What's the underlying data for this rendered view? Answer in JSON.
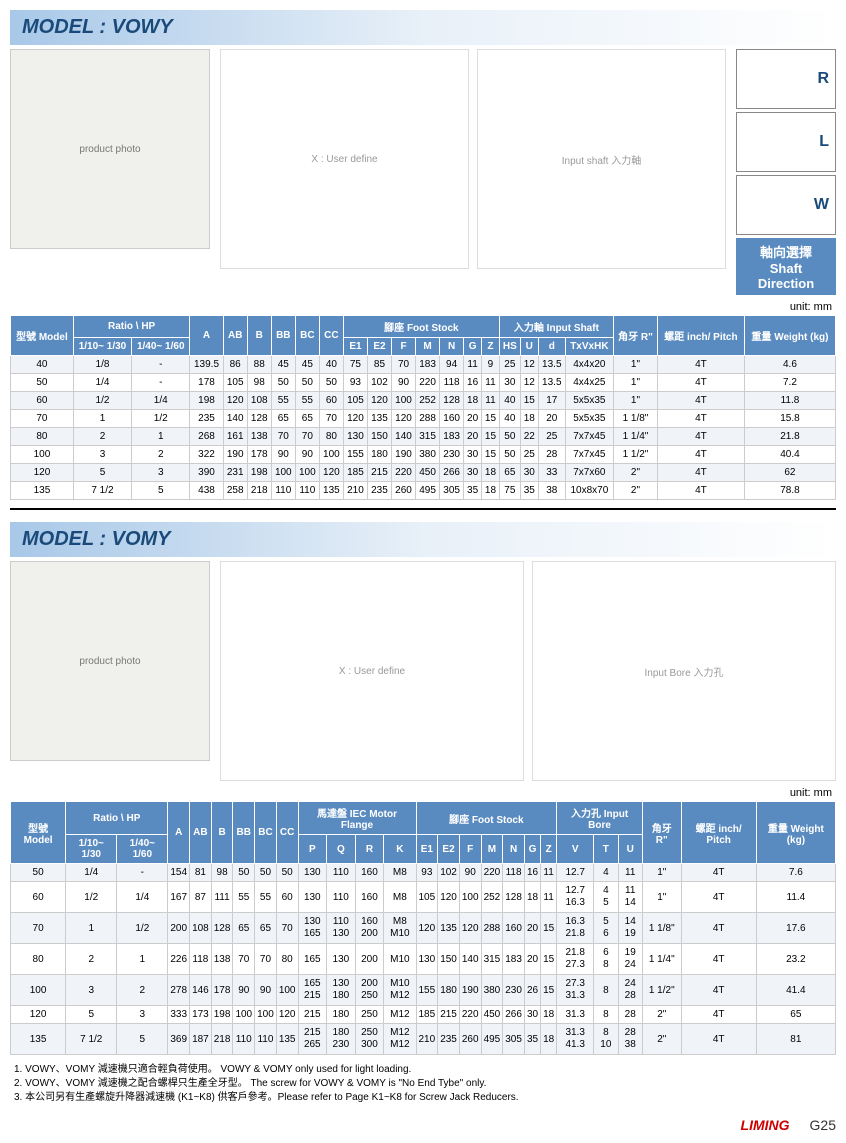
{
  "vowy": {
    "title": "MODEL : VOWY",
    "drawing_label1": "X : User define",
    "drawing_label2": "Input shaft 入力軸",
    "shaft_dir": {
      "label_cn": "軸向選擇",
      "label_en": "Shaft Direction",
      "opts": [
        "R",
        "L",
        "W"
      ]
    },
    "unit": "unit: mm",
    "headers": {
      "model": "型號 Model",
      "ratio": "Ratio \\ HP",
      "r1": "1/10~ 1/30",
      "r2": "1/40~ 1/60",
      "a": "A",
      "ab": "AB",
      "b": "B",
      "bb": "BB",
      "bc": "BC",
      "cc": "CC",
      "foot": "腳座 Foot Stock",
      "e1": "E1",
      "e2": "E2",
      "f": "F",
      "m": "M",
      "n": "N",
      "g": "G",
      "z": "Z",
      "input": "入力軸 Input Shaft",
      "hs": "HS",
      "u": "U",
      "d": "d",
      "tx": "TxVxHK",
      "r": "角牙 R\"",
      "pitch": "螺距 inch/ Pitch",
      "wt": "重量 Weight (kg)"
    },
    "rows": [
      [
        "40",
        "1/8",
        "-",
        "139.5",
        "86",
        "88",
        "45",
        "45",
        "40",
        "75",
        "85",
        "70",
        "183",
        "94",
        "11",
        "9",
        "25",
        "12",
        "13.5",
        "4x4x20",
        "1\"",
        "4T",
        "4.6"
      ],
      [
        "50",
        "1/4",
        "-",
        "178",
        "105",
        "98",
        "50",
        "50",
        "50",
        "93",
        "102",
        "90",
        "220",
        "118",
        "16",
        "11",
        "30",
        "12",
        "13.5",
        "4x4x25",
        "1\"",
        "4T",
        "7.2"
      ],
      [
        "60",
        "1/2",
        "1/4",
        "198",
        "120",
        "108",
        "55",
        "55",
        "60",
        "105",
        "120",
        "100",
        "252",
        "128",
        "18",
        "11",
        "40",
        "15",
        "17",
        "5x5x35",
        "1\"",
        "4T",
        "11.8"
      ],
      [
        "70",
        "1",
        "1/2",
        "235",
        "140",
        "128",
        "65",
        "65",
        "70",
        "120",
        "135",
        "120",
        "288",
        "160",
        "20",
        "15",
        "40",
        "18",
        "20",
        "5x5x35",
        "1 1/8\"",
        "4T",
        "15.8"
      ],
      [
        "80",
        "2",
        "1",
        "268",
        "161",
        "138",
        "70",
        "70",
        "80",
        "130",
        "150",
        "140",
        "315",
        "183",
        "20",
        "15",
        "50",
        "22",
        "25",
        "7x7x45",
        "1 1/4\"",
        "4T",
        "21.8"
      ],
      [
        "100",
        "3",
        "2",
        "322",
        "190",
        "178",
        "90",
        "90",
        "100",
        "155",
        "180",
        "190",
        "380",
        "230",
        "30",
        "15",
        "50",
        "25",
        "28",
        "7x7x45",
        "1 1/2\"",
        "4T",
        "40.4"
      ],
      [
        "120",
        "5",
        "3",
        "390",
        "231",
        "198",
        "100",
        "100",
        "120",
        "185",
        "215",
        "220",
        "450",
        "266",
        "30",
        "18",
        "65",
        "30",
        "33",
        "7x7x60",
        "2\"",
        "4T",
        "62"
      ],
      [
        "135",
        "7 1/2",
        "5",
        "438",
        "258",
        "218",
        "110",
        "110",
        "135",
        "210",
        "235",
        "260",
        "495",
        "305",
        "35",
        "18",
        "75",
        "35",
        "38",
        "10x8x70",
        "2\"",
        "4T",
        "78.8"
      ]
    ]
  },
  "vomy": {
    "title": "MODEL : VOMY",
    "drawing_label1": "X : User define",
    "drawing_label2": "Input Bore 入力孔",
    "unit": "unit: mm",
    "headers": {
      "model": "型號 Model",
      "ratio": "Ratio \\ HP",
      "r1": "1/10~ 1/30",
      "r2": "1/40~ 1/60",
      "a": "A",
      "ab": "AB",
      "b": "B",
      "bb": "BB",
      "bc": "BC",
      "cc": "CC",
      "mf": "馬達盤 IEC Motor Flange",
      "p": "P",
      "q": "Q",
      "rr": "R",
      "k": "K",
      "foot": "腳座 Foot Stock",
      "e1": "E1",
      "e2": "E2",
      "f": "F",
      "m": "M",
      "n": "N",
      "g": "G",
      "z": "Z",
      "ib": "入力孔 Input Bore",
      "v": "V",
      "t": "T",
      "u": "U",
      "r": "角牙 R\"",
      "pitch": "螺距 inch/ Pitch",
      "wt": "重量 Weight (kg)"
    },
    "rows": [
      [
        "50",
        "1/4",
        "-",
        "154",
        "81",
        "98",
        "50",
        "50",
        "50",
        "130",
        "110",
        "160",
        "M8",
        "93",
        "102",
        "90",
        "220",
        "118",
        "16",
        "11",
        "12.7",
        "4",
        "11",
        "1\"",
        "4T",
        "7.6"
      ],
      [
        "60",
        "1/2",
        "1/4",
        "167",
        "87",
        "111",
        "55",
        "55",
        "60",
        "130",
        "110",
        "160",
        "M8",
        "105",
        "120",
        "100",
        "252",
        "128",
        "18",
        "11",
        "12.7\n16.3",
        "4\n5",
        "11\n14",
        "1\"",
        "4T",
        "11.4"
      ],
      [
        "70",
        "1",
        "1/2",
        "200",
        "108",
        "128",
        "65",
        "65",
        "70",
        "130\n165",
        "110\n130",
        "160\n200",
        "M8\nM10",
        "120",
        "135",
        "120",
        "288",
        "160",
        "20",
        "15",
        "16.3\n21.8",
        "5\n6",
        "14\n19",
        "1 1/8\"",
        "4T",
        "17.6"
      ],
      [
        "80",
        "2",
        "1",
        "226",
        "118",
        "138",
        "70",
        "70",
        "80",
        "165",
        "130",
        "200",
        "M10",
        "130",
        "150",
        "140",
        "315",
        "183",
        "20",
        "15",
        "21.8\n27.3",
        "6\n8",
        "19\n24",
        "1 1/4\"",
        "4T",
        "23.2"
      ],
      [
        "100",
        "3",
        "2",
        "278",
        "146",
        "178",
        "90",
        "90",
        "100",
        "165\n215",
        "130\n180",
        "200\n250",
        "M10\nM12",
        "155",
        "180",
        "190",
        "380",
        "230",
        "26",
        "15",
        "27.3\n31.3",
        "8",
        "24\n28",
        "1 1/2\"",
        "4T",
        "41.4"
      ],
      [
        "120",
        "5",
        "3",
        "333",
        "173",
        "198",
        "100",
        "100",
        "120",
        "215",
        "180",
        "250",
        "M12",
        "185",
        "215",
        "220",
        "450",
        "266",
        "30",
        "18",
        "31.3",
        "8",
        "28",
        "2\"",
        "4T",
        "65"
      ],
      [
        "135",
        "7 1/2",
        "5",
        "369",
        "187",
        "218",
        "110",
        "110",
        "135",
        "215\n265",
        "180\n230",
        "250\n300",
        "M12\nM12",
        "210",
        "235",
        "260",
        "495",
        "305",
        "35",
        "18",
        "31.3\n41.3",
        "8\n10",
        "28\n38",
        "2\"",
        "4T",
        "81"
      ]
    ]
  },
  "notes": [
    "1. VOWY、VOMY 減速機只適合輕負荷使用。 VOWY & VOMY only used for light loading.",
    "2. VOWY、VOMY 減速機之配合螺桿只生產全牙型。 The screw for VOWY & VOMY is \"No End Tybe\" only.",
    "3. 本公司另有生產螺旋升降器減速機 (K1~K8) 供客戶參考。Please refer to Page K1~K8 for Screw Jack Reducers."
  ],
  "footer": {
    "logo": "LIMING",
    "page": "G25"
  }
}
